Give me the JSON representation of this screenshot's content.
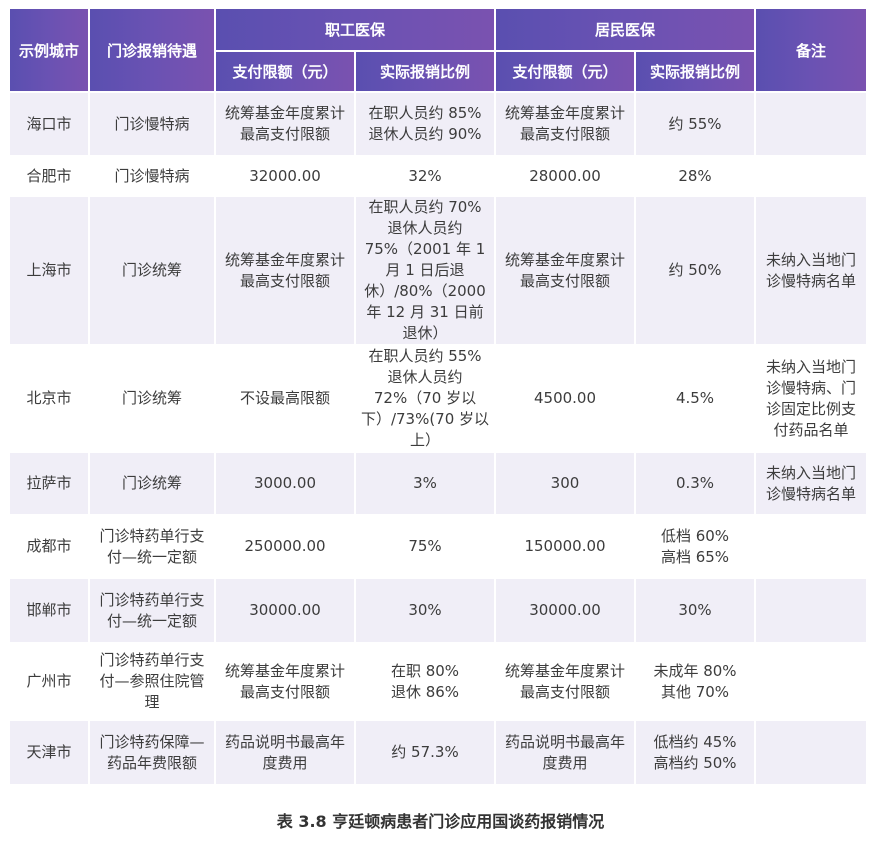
{
  "header": {
    "city": "示例城市",
    "treatment": "门诊报销待遇",
    "employee": "职工医保",
    "resident": "居民医保",
    "notes": "备注",
    "limit": "支付限额（元）",
    "ratio": "实际报销比例"
  },
  "rows": [
    {
      "city": "海口市",
      "treatment": "门诊慢特病",
      "emp_limit": "统筹基金年度累计最高支付限额",
      "emp_ratio": "在职人员约 85%\n退休人员约 90%",
      "res_limit": "统筹基金年度累计最高支付限额",
      "res_ratio": "约 55%",
      "notes": ""
    },
    {
      "city": "合肥市",
      "treatment": "门诊慢特病",
      "emp_limit": "32000.00",
      "emp_ratio": "32%",
      "res_limit": "28000.00",
      "res_ratio": "28%",
      "notes": ""
    },
    {
      "city": "上海市",
      "treatment": "门诊统筹",
      "emp_limit": "统筹基金年度累计最高支付限额",
      "emp_ratio": "在职人员约 70%\n退休人员约 75%（2001 年 1 月 1 日后退休）/80%（2000 年 12 月 31 日前退休）",
      "res_limit": "统筹基金年度累计最高支付限额",
      "res_ratio": "约 50%",
      "notes": "未纳入当地门诊慢特病名单"
    },
    {
      "city": "北京市",
      "treatment": "门诊统筹",
      "emp_limit": "不设最高限额",
      "emp_ratio": "在职人员约 55%\n退休人员约 72%（70 岁以下）/73%(70 岁以上）",
      "res_limit": "4500.00",
      "res_ratio": "4.5%",
      "notes": "未纳入当地门诊慢特病、门诊固定比例支付药品名单"
    },
    {
      "city": "拉萨市",
      "treatment": "门诊统筹",
      "emp_limit": "3000.00",
      "emp_ratio": "3%",
      "res_limit": "300",
      "res_ratio": "0.3%",
      "notes": "未纳入当地门诊慢特病名单"
    },
    {
      "city": "成都市",
      "treatment": "门诊特药单行支付—统一定额",
      "emp_limit": "250000.00",
      "emp_ratio": "75%",
      "res_limit": "150000.00",
      "res_ratio": "低档 60%\n高档 65%",
      "notes": ""
    },
    {
      "city": "邯郸市",
      "treatment": "门诊特药单行支付—统一定额",
      "emp_limit": "30000.00",
      "emp_ratio": "30%",
      "res_limit": "30000.00",
      "res_ratio": "30%",
      "notes": ""
    },
    {
      "city": "广州市",
      "treatment": "门诊特药单行支付—参照住院管理",
      "emp_limit": "统筹基金年度累计最高支付限额",
      "emp_ratio": "在职 80%\n退休 86%",
      "res_limit": "统筹基金年度累计最高支付限额",
      "res_ratio": "未成年 80%\n其他 70%",
      "notes": ""
    },
    {
      "city": "天津市",
      "treatment": "门诊特药保障—药品年费限额",
      "emp_limit": "药品说明书最高年度费用",
      "emp_ratio": "约 57.3%",
      "res_limit": "药品说明书最高年度费用",
      "res_ratio": "低档约 45%\n高档约 50%",
      "notes": ""
    }
  ],
  "caption": "表 3.8 亨廷顿病患者门诊应用国谈药报销情况"
}
